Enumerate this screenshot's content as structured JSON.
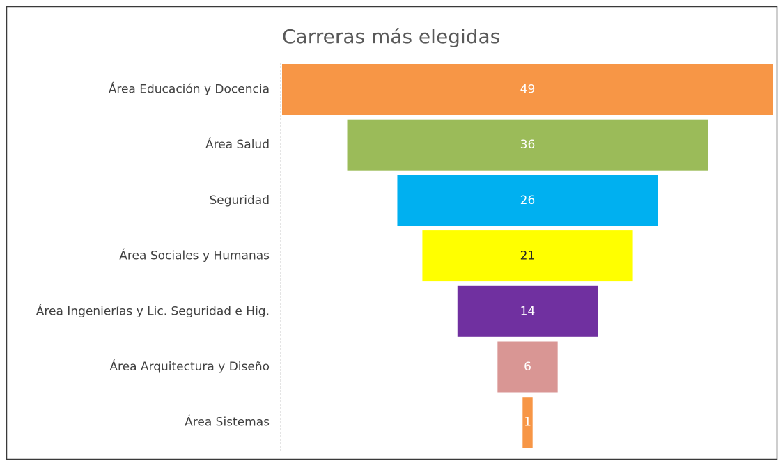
{
  "chart_data": {
    "type": "funnel",
    "title": "Carreras más elegidas",
    "categories": [
      "Área Educación y Docencia",
      "Área Salud",
      "Seguridad",
      "Área Sociales y Humanas",
      "Área Ingenierías y Lic. Seguridad e Hig.",
      "Área Arquitectura y Diseño",
      "Área Sistemas"
    ],
    "values": [
      49,
      36,
      26,
      21,
      14,
      6,
      1
    ],
    "colors": [
      "#f79646",
      "#9bbb59",
      "#00b0f0",
      "#ffff00",
      "#7030a0",
      "#d99694",
      "#f79646"
    ],
    "label_colors": [
      "#ffffff",
      "#ffffff",
      "#ffffff",
      "#262626",
      "#ffffff",
      "#ffffff",
      "#ffffff"
    ]
  }
}
